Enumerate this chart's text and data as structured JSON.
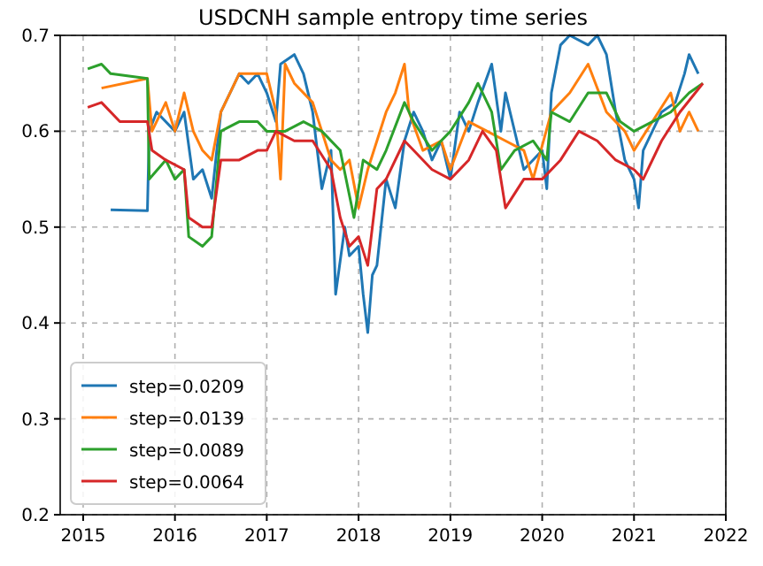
{
  "chart_data": {
    "type": "line",
    "title": "USDCNH sample entropy time series",
    "xlim": [
      2014.75,
      2022
    ],
    "xticks": [
      2015,
      2016,
      2017,
      2018,
      2019,
      2020,
      2021,
      2022
    ],
    "ylim": [
      0.2,
      0.7
    ],
    "yticks": [
      0.2,
      0.3,
      0.4,
      0.5,
      0.6,
      0.7
    ],
    "grid": true,
    "legend": "bottom left",
    "line_style": "solid",
    "marker": "none",
    "series": [
      {
        "name": "step=0.0209",
        "color": "#1f77b4",
        "x": [
          2015.3,
          2015.7,
          2015.72,
          2015.8,
          2016.0,
          2016.1,
          2016.2,
          2016.3,
          2016.4,
          2016.5,
          2016.6,
          2016.7,
          2016.8,
          2016.9,
          2017.0,
          2017.1,
          2017.15,
          2017.3,
          2017.4,
          2017.5,
          2017.6,
          2017.7,
          2017.75,
          2017.85,
          2017.9,
          2018.0,
          2018.05,
          2018.1,
          2018.15,
          2018.2,
          2018.3,
          2018.4,
          2018.5,
          2018.6,
          2018.7,
          2018.8,
          2018.9,
          2019.0,
          2019.1,
          2019.2,
          2019.3,
          2019.45,
          2019.55,
          2019.6,
          2019.8,
          2019.9,
          2020.0,
          2020.05,
          2020.1,
          2020.2,
          2020.3,
          2020.5,
          2020.6,
          2020.7,
          2020.8,
          2020.9,
          2021.0,
          2021.05,
          2021.1,
          2021.3,
          2021.45,
          2021.55,
          2021.6,
          2021.7
        ],
        "values": [
          0.518,
          0.517,
          0.6,
          0.62,
          0.6,
          0.62,
          0.55,
          0.56,
          0.53,
          0.62,
          0.64,
          0.66,
          0.65,
          0.66,
          0.64,
          0.61,
          0.67,
          0.68,
          0.66,
          0.62,
          0.54,
          0.58,
          0.43,
          0.5,
          0.47,
          0.48,
          0.43,
          0.39,
          0.45,
          0.46,
          0.55,
          0.52,
          0.59,
          0.62,
          0.6,
          0.57,
          0.59,
          0.55,
          0.62,
          0.6,
          0.63,
          0.67,
          0.6,
          0.64,
          0.56,
          0.57,
          0.58,
          0.54,
          0.64,
          0.69,
          0.7,
          0.69,
          0.7,
          0.68,
          0.62,
          0.57,
          0.55,
          0.52,
          0.58,
          0.62,
          0.63,
          0.66,
          0.68,
          0.66
        ]
      },
      {
        "name": "step=0.0139",
        "color": "#ff7f0e",
        "x": [
          2015.2,
          2015.7,
          2015.75,
          2015.9,
          2016.0,
          2016.1,
          2016.2,
          2016.3,
          2016.4,
          2016.5,
          2016.7,
          2016.9,
          2017.0,
          2017.1,
          2017.15,
          2017.2,
          2017.3,
          2017.5,
          2017.7,
          2017.8,
          2017.9,
          2018.0,
          2018.1,
          2018.3,
          2018.4,
          2018.5,
          2018.55,
          2018.7,
          2018.9,
          2019.0,
          2019.2,
          2019.4,
          2019.6,
          2019.8,
          2019.9,
          2020.1,
          2020.3,
          2020.5,
          2020.7,
          2020.9,
          2021.0,
          2021.2,
          2021.4,
          2021.5,
          2021.6,
          2021.7
        ],
        "values": [
          0.645,
          0.655,
          0.6,
          0.63,
          0.6,
          0.64,
          0.6,
          0.58,
          0.57,
          0.62,
          0.66,
          0.66,
          0.66,
          0.62,
          0.55,
          0.67,
          0.65,
          0.63,
          0.57,
          0.56,
          0.57,
          0.52,
          0.56,
          0.62,
          0.64,
          0.67,
          0.62,
          0.58,
          0.59,
          0.56,
          0.61,
          0.6,
          0.59,
          0.58,
          0.55,
          0.62,
          0.64,
          0.67,
          0.62,
          0.6,
          0.58,
          0.61,
          0.64,
          0.6,
          0.62,
          0.6
        ]
      },
      {
        "name": "step=0.0089",
        "color": "#2ca02c",
        "x": [
          2015.05,
          2015.2,
          2015.3,
          2015.7,
          2015.72,
          2015.9,
          2016.0,
          2016.1,
          2016.15,
          2016.3,
          2016.4,
          2016.5,
          2016.7,
          2016.9,
          2017.0,
          2017.2,
          2017.4,
          2017.6,
          2017.8,
          2017.95,
          2018.05,
          2018.2,
          2018.3,
          2018.5,
          2018.6,
          2018.8,
          2019.0,
          2019.2,
          2019.3,
          2019.45,
          2019.55,
          2019.7,
          2019.9,
          2020.05,
          2020.1,
          2020.3,
          2020.5,
          2020.7,
          2020.85,
          2021.0,
          2021.2,
          2021.4,
          2021.6,
          2021.75
        ],
        "values": [
          0.665,
          0.67,
          0.66,
          0.655,
          0.55,
          0.57,
          0.55,
          0.56,
          0.49,
          0.48,
          0.49,
          0.6,
          0.61,
          0.61,
          0.6,
          0.6,
          0.61,
          0.6,
          0.58,
          0.51,
          0.57,
          0.56,
          0.58,
          0.63,
          0.61,
          0.58,
          0.6,
          0.63,
          0.65,
          0.62,
          0.56,
          0.58,
          0.59,
          0.57,
          0.62,
          0.61,
          0.64,
          0.64,
          0.61,
          0.6,
          0.61,
          0.62,
          0.64,
          0.65
        ]
      },
      {
        "name": "step=0.0064",
        "color": "#d62728",
        "x": [
          2015.05,
          2015.2,
          2015.4,
          2015.7,
          2015.75,
          2015.9,
          2016.1,
          2016.15,
          2016.3,
          2016.4,
          2016.5,
          2016.7,
          2016.9,
          2017.0,
          2017.1,
          2017.3,
          2017.5,
          2017.7,
          2017.8,
          2017.9,
          2018.0,
          2018.1,
          2018.2,
          2018.3,
          2018.5,
          2018.6,
          2018.8,
          2019.0,
          2019.2,
          2019.35,
          2019.5,
          2019.6,
          2019.8,
          2020.0,
          2020.2,
          2020.4,
          2020.6,
          2020.8,
          2021.0,
          2021.1,
          2021.3,
          2021.5,
          2021.75
        ],
        "values": [
          0.625,
          0.63,
          0.61,
          0.61,
          0.58,
          0.57,
          0.56,
          0.51,
          0.5,
          0.5,
          0.57,
          0.57,
          0.58,
          0.58,
          0.6,
          0.59,
          0.59,
          0.56,
          0.51,
          0.48,
          0.49,
          0.46,
          0.54,
          0.55,
          0.59,
          0.58,
          0.56,
          0.55,
          0.57,
          0.6,
          0.58,
          0.52,
          0.55,
          0.55,
          0.57,
          0.6,
          0.59,
          0.57,
          0.56,
          0.55,
          0.59,
          0.62,
          0.65
        ]
      }
    ]
  }
}
